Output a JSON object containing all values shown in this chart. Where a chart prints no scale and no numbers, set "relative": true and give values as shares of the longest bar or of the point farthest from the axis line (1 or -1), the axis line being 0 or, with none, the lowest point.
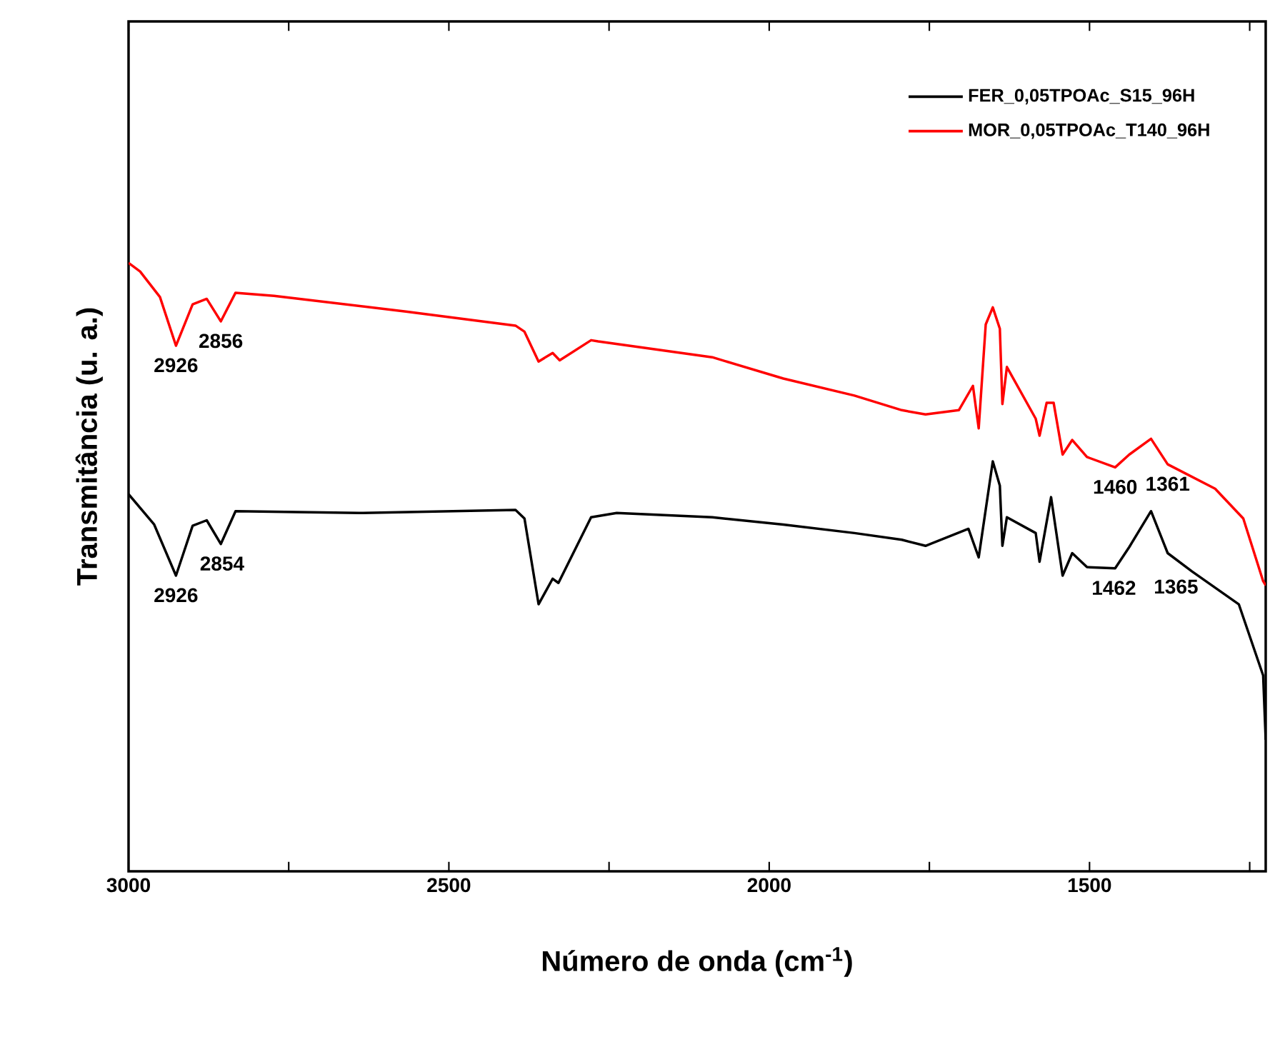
{
  "chart_data": {
    "type": "line",
    "relative": true,
    "xlabel": "Número de onda (cm$^{-1}$)",
    "ylabel": "Transmitância (u. a.)",
    "xlim": [
      3000,
      1225
    ],
    "xticks": [
      3000,
      {
        "value": 2750,
        "label": null
      },
      2500,
      {
        "value": 2250,
        "label": null
      },
      2000,
      {
        "value": 1750,
        "label": null
      },
      1500,
      {
        "value": 1250,
        "label": null
      }
    ],
    "legend": "top right",
    "grid": false,
    "marker": "none",
    "line_style": "solid",
    "series": [
      {
        "name": "FER_0,05TPOAc_S15_96H",
        "color": "#000000",
        "x": [
          3000,
          2960,
          2926,
          2900,
          2878,
          2856,
          2833,
          2640,
          2396,
          2382,
          2360,
          2338,
          2329,
          2278,
          2238,
          2089,
          1978,
          1867,
          1793,
          1756,
          1689,
          1673,
          1651,
          1640,
          1636,
          1629,
          1584,
          1578,
          1560,
          1542,
          1527,
          1504,
          1460,
          1438,
          1404,
          1378,
          1340,
          1267,
          1229,
          1225
        ],
        "values": [
          0.62,
          0.57,
          0.486,
          0.568,
          0.577,
          0.538,
          0.592,
          0.589,
          0.594,
          0.58,
          0.439,
          0.481,
          0.474,
          0.582,
          0.589,
          0.582,
          0.57,
          0.556,
          0.545,
          0.535,
          0.563,
          0.516,
          0.674,
          0.634,
          0.535,
          0.582,
          0.556,
          0.509,
          0.615,
          0.486,
          0.523,
          0.5,
          0.498,
          0.533,
          0.592,
          0.523,
          0.493,
          0.439,
          0.322,
          0.216
        ]
      },
      {
        "name": "MOR_0,05TPOAc_T140_96H",
        "color": "#ff0000",
        "x": [
          3000,
          2982,
          2951,
          2926,
          2900,
          2878,
          2856,
          2833,
          2773,
          2567,
          2396,
          2382,
          2360,
          2338,
          2327,
          2278,
          2267,
          2089,
          1978,
          1867,
          1793,
          1756,
          1704,
          1682,
          1673,
          1662,
          1651,
          1640,
          1636,
          1629,
          1584,
          1578,
          1567,
          1556,
          1542,
          1527,
          1504,
          1460,
          1438,
          1404,
          1378,
          1304,
          1260,
          1229,
          1225
        ],
        "values": [
          1.0,
          0.986,
          0.944,
          0.864,
          0.932,
          0.941,
          0.904,
          0.951,
          0.946,
          0.92,
          0.897,
          0.887,
          0.838,
          0.852,
          0.84,
          0.873,
          0.871,
          0.845,
          0.81,
          0.782,
          0.758,
          0.751,
          0.758,
          0.798,
          0.728,
          0.899,
          0.927,
          0.892,
          0.768,
          0.829,
          0.744,
          0.716,
          0.77,
          0.77,
          0.685,
          0.709,
          0.681,
          0.664,
          0.685,
          0.711,
          0.669,
          0.629,
          0.58,
          0.477,
          0.47
        ]
      }
    ],
    "annotations": [
      {
        "text": "2926",
        "x": 2926,
        "y": 0.864
      },
      {
        "text": "2856",
        "x": 2856,
        "y": 0.904
      },
      {
        "text": "1460",
        "x": 1460,
        "y": 0.664
      },
      {
        "text": "1361",
        "x": 1378,
        "y": 0.669
      },
      {
        "text": "2926",
        "x": 2926,
        "y": 0.486
      },
      {
        "text": "2854",
        "x": 2854,
        "y": 0.538
      },
      {
        "text": "1462",
        "x": 1462,
        "y": 0.498
      },
      {
        "text": "1365",
        "x": 1365,
        "y": 0.5
      }
    ]
  }
}
